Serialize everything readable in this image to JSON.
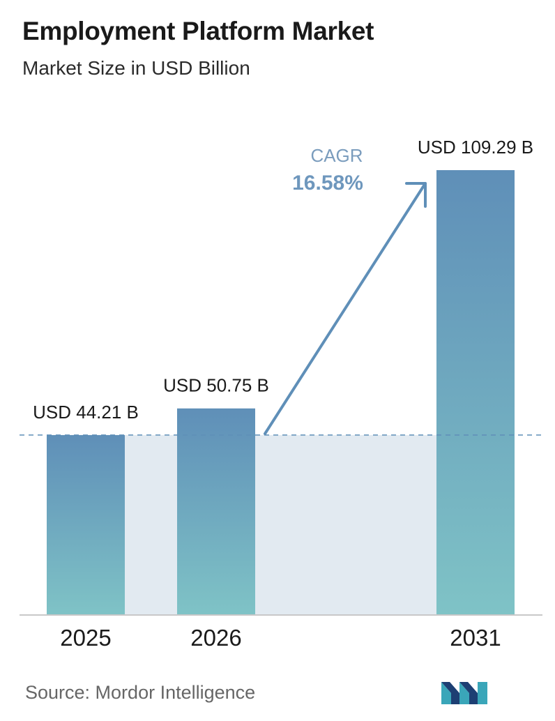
{
  "header": {
    "title": "Employment Platform Market",
    "subtitle": "Market Size in USD Billion"
  },
  "chart_data": {
    "type": "bar",
    "title": "Employment Platform Market",
    "subtitle": "Market Size in USD Billion",
    "categories": [
      "2025",
      "2026",
      "2031"
    ],
    "values": [
      44.21,
      50.75,
      109.29
    ],
    "value_labels": [
      "USD 44.21 B",
      "USD 50.75 B",
      "USD 109.29 B"
    ],
    "unit": "USD Billion",
    "reference_line_value": 44.21,
    "annotation": {
      "label": "CAGR",
      "value": "16.58%"
    },
    "grid": false,
    "legend": "none",
    "colors": {
      "bar_top": "#5f8fb8",
      "bar_bottom": "#7fc3c6",
      "band": "#e2eaf1",
      "arrow": "#5f8fb8",
      "cagr_label": "#7a9cbd",
      "cagr_value": "#6e97bd",
      "axis": "#c8c8c8"
    }
  },
  "footer": {
    "source": "Source: Mordor Intelligence",
    "logo_icon": "mordor-intelligence-logo-icon"
  }
}
